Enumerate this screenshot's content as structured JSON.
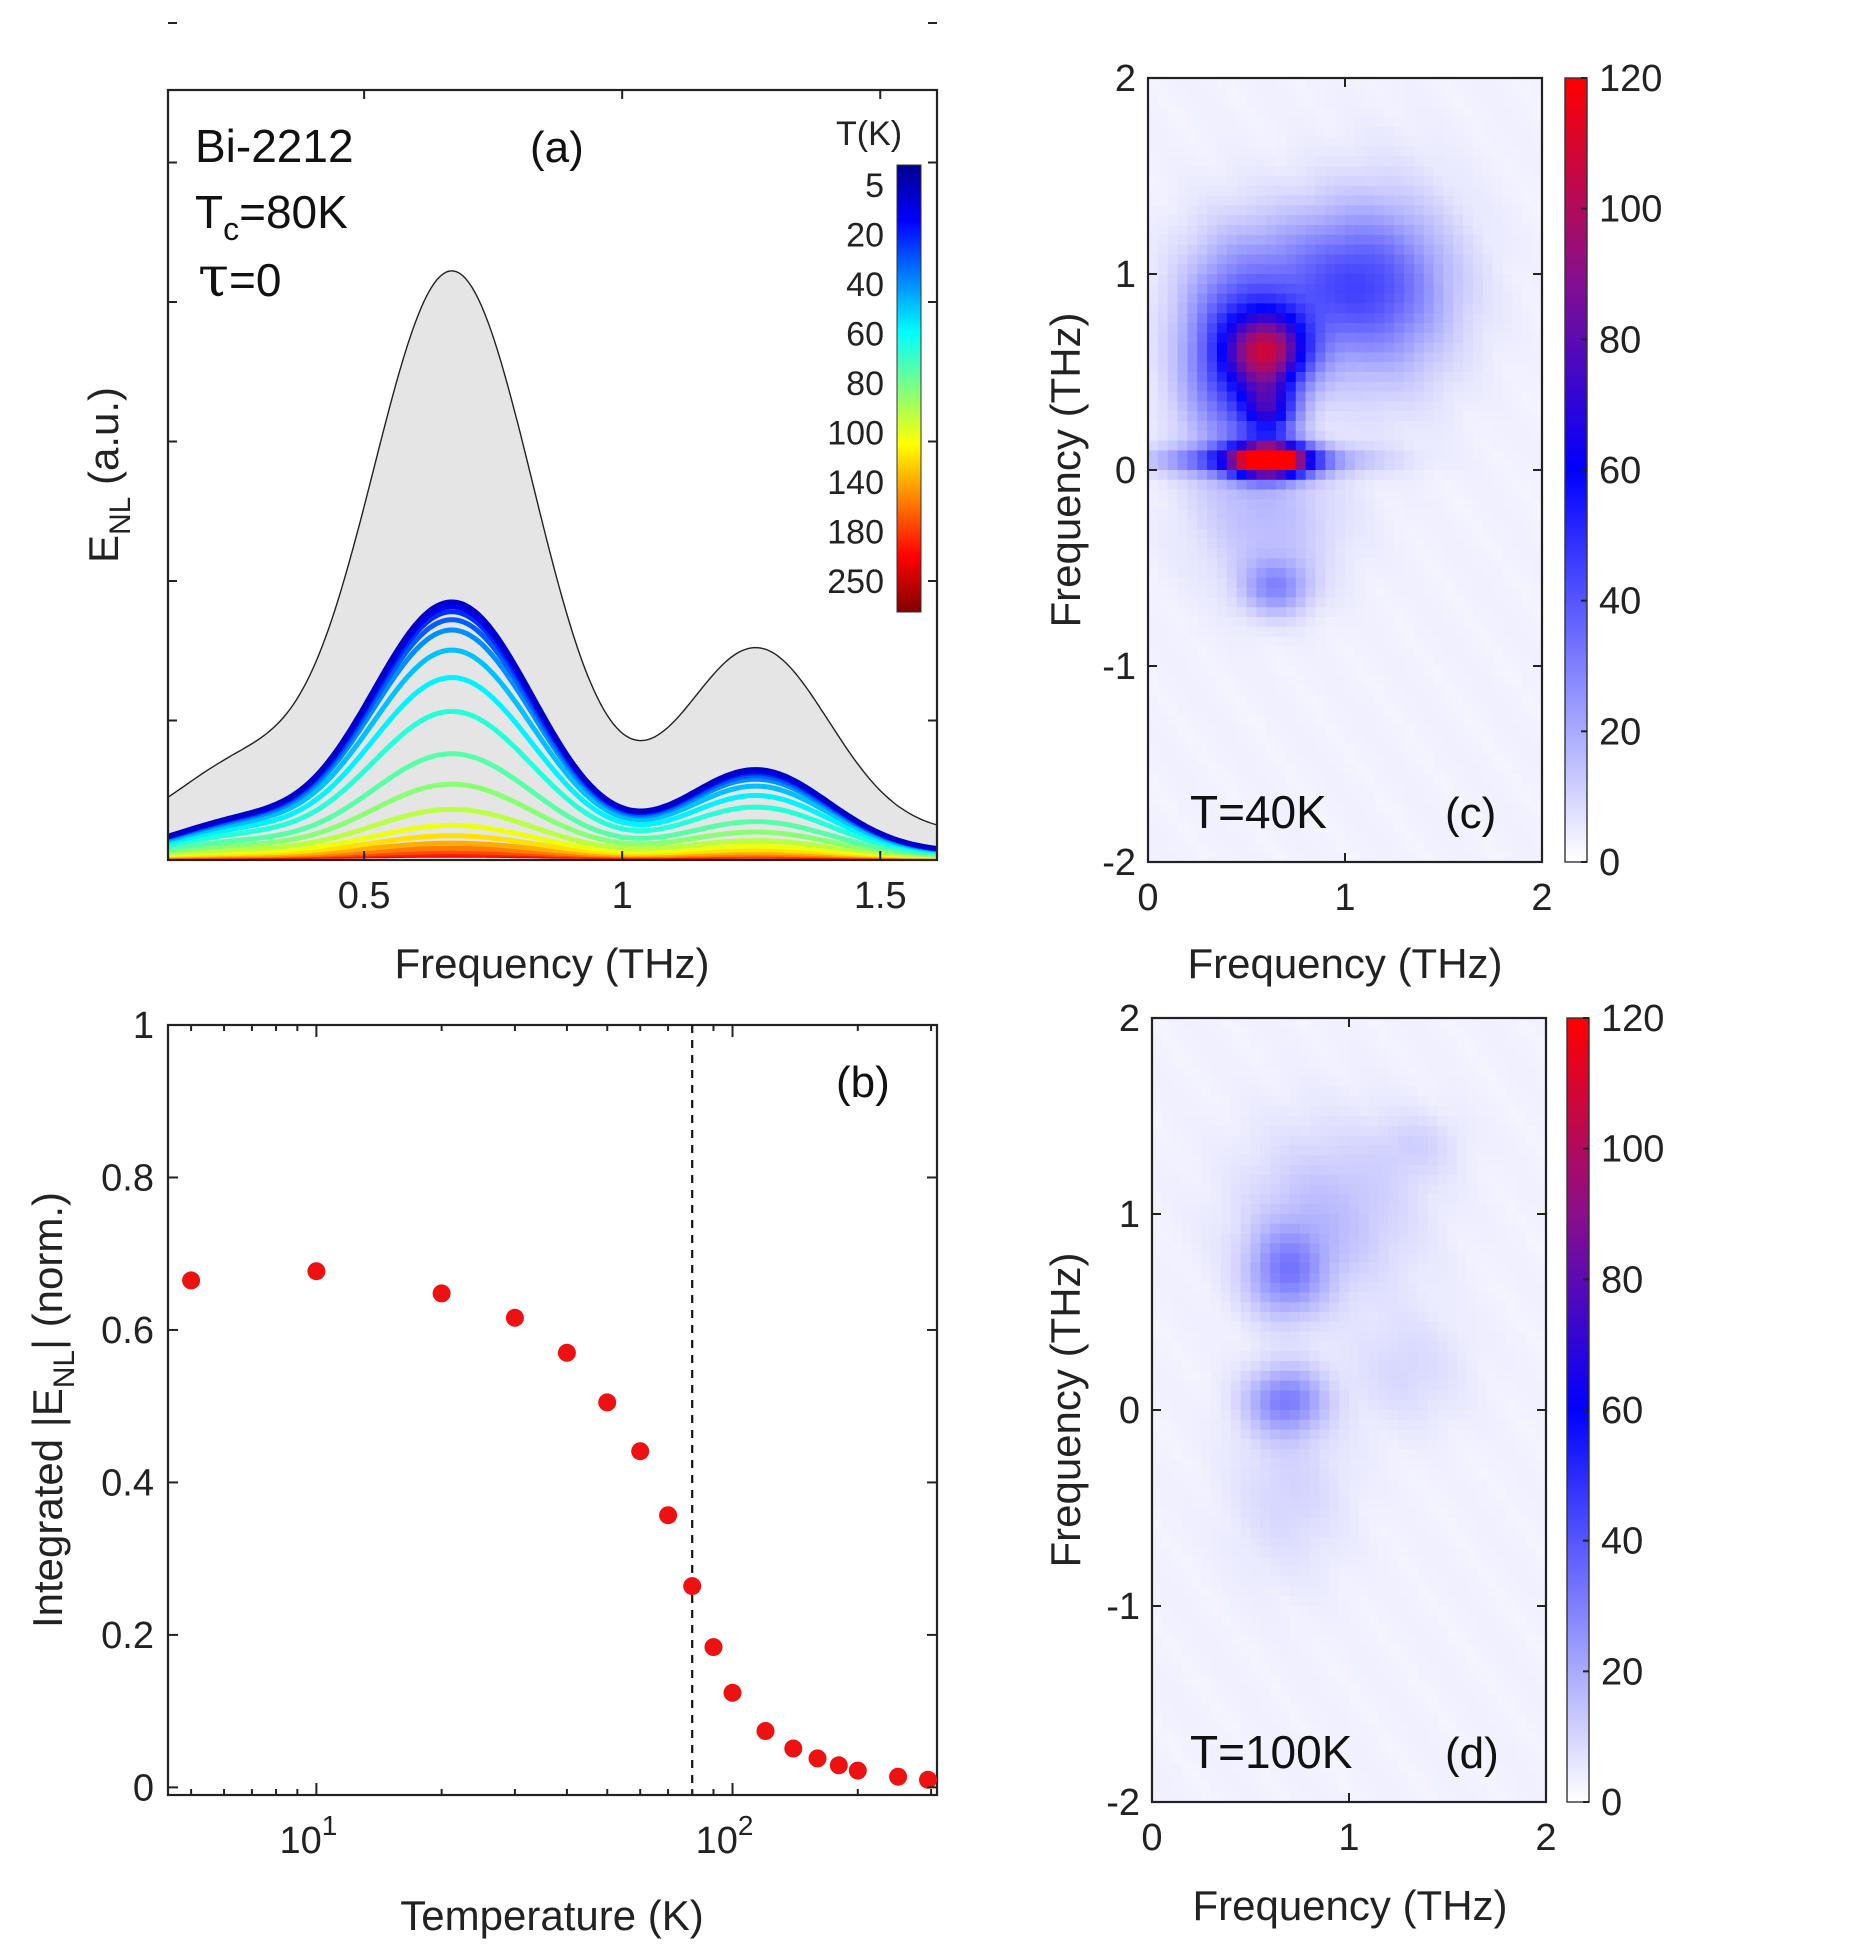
{
  "chart_data": [
    {
      "id": "a",
      "type": "line",
      "panel_label": "(a)",
      "sample": "Bi-2212",
      "tc_main": "T",
      "tc_sub": "c",
      "tc_value": "=80K",
      "tau_symbol": "τ",
      "tau_value": "=0",
      "xlabel": "Frequency (THz)",
      "ylabel_main": "E",
      "ylabel_sub": "NL",
      "ylabel_unit": " (a.u.)",
      "xlim": [
        0.12,
        1.61
      ],
      "ylim": [
        0,
        1.0
      ],
      "xticks": [
        "0.5",
        "1",
        "1.5"
      ],
      "colorbar_title": "T(K)",
      "colorbar_labels": [
        "5",
        "20",
        "40",
        "60",
        "80",
        "100",
        "140",
        "180",
        "250"
      ],
      "envelope_peaks": [
        {
          "center": 0.67,
          "amplitude": 0.73,
          "width": 0.16
        },
        {
          "center": 1.26,
          "amplitude": 0.24,
          "width": 0.14
        },
        {
          "center": 0.25,
          "amplitude": 0.08,
          "width": 0.12
        }
      ],
      "envelope_baseline": 0.035,
      "series": [
        {
          "T": 5,
          "scale": 0.445
        },
        {
          "T": 10,
          "scale": 0.437
        },
        {
          "T": 20,
          "scale": 0.428
        },
        {
          "T": 30,
          "scale": 0.414
        },
        {
          "T": 40,
          "scale": 0.396
        },
        {
          "T": 50,
          "scale": 0.361
        },
        {
          "T": 60,
          "scale": 0.313
        },
        {
          "T": 70,
          "scale": 0.254
        },
        {
          "T": 80,
          "scale": 0.18
        },
        {
          "T": 90,
          "scale": 0.127
        },
        {
          "T": 100,
          "scale": 0.083
        },
        {
          "T": 120,
          "scale": 0.055
        },
        {
          "T": 140,
          "scale": 0.037
        },
        {
          "T": 160,
          "scale": 0.024
        },
        {
          "T": 180,
          "scale": 0.015
        },
        {
          "T": 200,
          "scale": 0.009
        },
        {
          "T": 250,
          "scale": 0.005
        },
        {
          "T": 295,
          "scale": 0.003
        }
      ]
    },
    {
      "id": "b",
      "type": "scatter",
      "panel_label": "(b)",
      "xlabel": "Temperature (K)",
      "ylabel_prefix": "Integrated |E",
      "ylabel_sub": "NL",
      "ylabel_suffix": "| (norm.)",
      "xscale": "log",
      "xlim": [
        4.4,
        310
      ],
      "ylim": [
        -0.01,
        1.0
      ],
      "xticks": [
        {
          "base": "10",
          "exp": "1"
        },
        {
          "base": "10",
          "exp": "2"
        }
      ],
      "yticks": [
        "0",
        "0.2",
        "0.4",
        "0.6",
        "0.8",
        "1"
      ],
      "tc_line": 80,
      "x": [
        5,
        10,
        20,
        30,
        40,
        50,
        60,
        70,
        80,
        90,
        100,
        120,
        140,
        160,
        180,
        200,
        250,
        295
      ],
      "y": [
        0.665,
        0.677,
        0.648,
        0.616,
        0.57,
        0.505,
        0.441,
        0.357,
        0.264,
        0.184,
        0.124,
        0.074,
        0.051,
        0.038,
        0.029,
        0.022,
        0.014,
        0.01
      ],
      "color": "#ee1111"
    },
    {
      "id": "c",
      "type": "heatmap",
      "panel_label": "(c)",
      "annotation": "T=40K",
      "xlabel": "Frequency (THz)",
      "ylabel": "Frequency (THz)",
      "xlim": [
        0,
        2
      ],
      "ylim": [
        -2,
        2
      ],
      "xticks": [
        "0",
        "1",
        "2"
      ],
      "yticks": [
        "-2",
        "-1",
        "0",
        "1",
        "2"
      ],
      "clim": [
        0,
        120
      ],
      "colorbar_ticks": [
        "0",
        "20",
        "40",
        "60",
        "80",
        "100",
        "120"
      ],
      "features": [
        {
          "fx": 0.62,
          "fy": 0.05,
          "sx": 0.13,
          "sy": 0.06,
          "amp": 120
        },
        {
          "fx": 0.62,
          "fy": 0.6,
          "sx": 0.14,
          "sy": 0.14,
          "amp": 75
        },
        {
          "fx": 0.62,
          "fy": 0.3,
          "sx": 0.1,
          "sy": 0.1,
          "amp": 45
        },
        {
          "fx": 0.55,
          "fy": 0.05,
          "sx": 0.35,
          "sy": 0.05,
          "amp": 35
        },
        {
          "fx": 0.42,
          "fy": 0.55,
          "sx": 0.18,
          "sy": 0.33,
          "amp": 38
        },
        {
          "fx": 0.88,
          "fy": 0.95,
          "sx": 0.35,
          "sy": 0.25,
          "amp": 28
        },
        {
          "fx": 1.2,
          "fy": 0.9,
          "sx": 0.25,
          "sy": 0.35,
          "amp": 20
        },
        {
          "fx": 0.65,
          "fy": -0.6,
          "sx": 0.12,
          "sy": 0.1,
          "amp": 22
        },
        {
          "fx": 0.62,
          "fy": -0.25,
          "sx": 0.25,
          "sy": 0.25,
          "amp": 12
        }
      ]
    },
    {
      "id": "d",
      "type": "heatmap",
      "panel_label": "(d)",
      "annotation": "T=100K",
      "xlabel": "Frequency (THz)",
      "ylabel": "Frequency (THz)",
      "xlim": [
        0,
        2
      ],
      "ylim": [
        -2,
        2
      ],
      "xticks": [
        "0",
        "1",
        "2"
      ],
      "yticks": [
        "-2",
        "-1",
        "0",
        "1",
        "2"
      ],
      "clim": [
        0,
        120
      ],
      "colorbar_ticks": [
        "0",
        "20",
        "40",
        "60",
        "80",
        "100",
        "120"
      ],
      "features": [
        {
          "fx": 0.68,
          "fy": 0.05,
          "sx": 0.14,
          "sy": 0.12,
          "amp": 26
        },
        {
          "fx": 0.68,
          "fy": 0.7,
          "sx": 0.14,
          "sy": 0.16,
          "amp": 24
        },
        {
          "fx": 0.9,
          "fy": 1.0,
          "sx": 0.3,
          "sy": 0.3,
          "amp": 12
        },
        {
          "fx": 0.7,
          "fy": -0.4,
          "sx": 0.2,
          "sy": 0.3,
          "amp": 7
        },
        {
          "fx": 1.3,
          "fy": 0.2,
          "sx": 0.2,
          "sy": 0.2,
          "amp": 6
        },
        {
          "fx": 1.35,
          "fy": 1.35,
          "sx": 0.15,
          "sy": 0.12,
          "amp": 6
        }
      ]
    }
  ]
}
